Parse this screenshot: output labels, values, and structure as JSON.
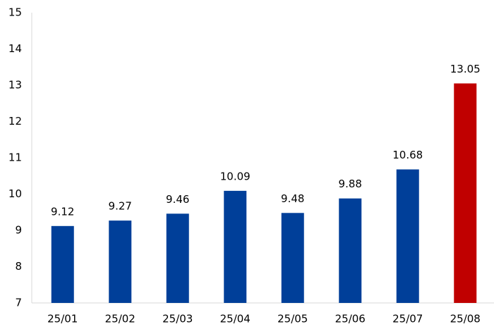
{
  "chart_data": {
    "type": "bar",
    "categories": [
      "25/01",
      "25/02",
      "25/03",
      "25/04",
      "25/05",
      "25/06",
      "25/07",
      "25/08"
    ],
    "values": [
      9.12,
      9.27,
      9.46,
      10.09,
      9.48,
      9.88,
      10.68,
      13.05
    ],
    "colors": [
      "#003f99",
      "#003f99",
      "#003f99",
      "#003f99",
      "#003f99",
      "#003f99",
      "#003f99",
      "#c00000"
    ],
    "ylim": [
      7,
      15
    ],
    "yticks": [
      7,
      8,
      9,
      10,
      11,
      12,
      13,
      14,
      15
    ],
    "grid": false
  }
}
